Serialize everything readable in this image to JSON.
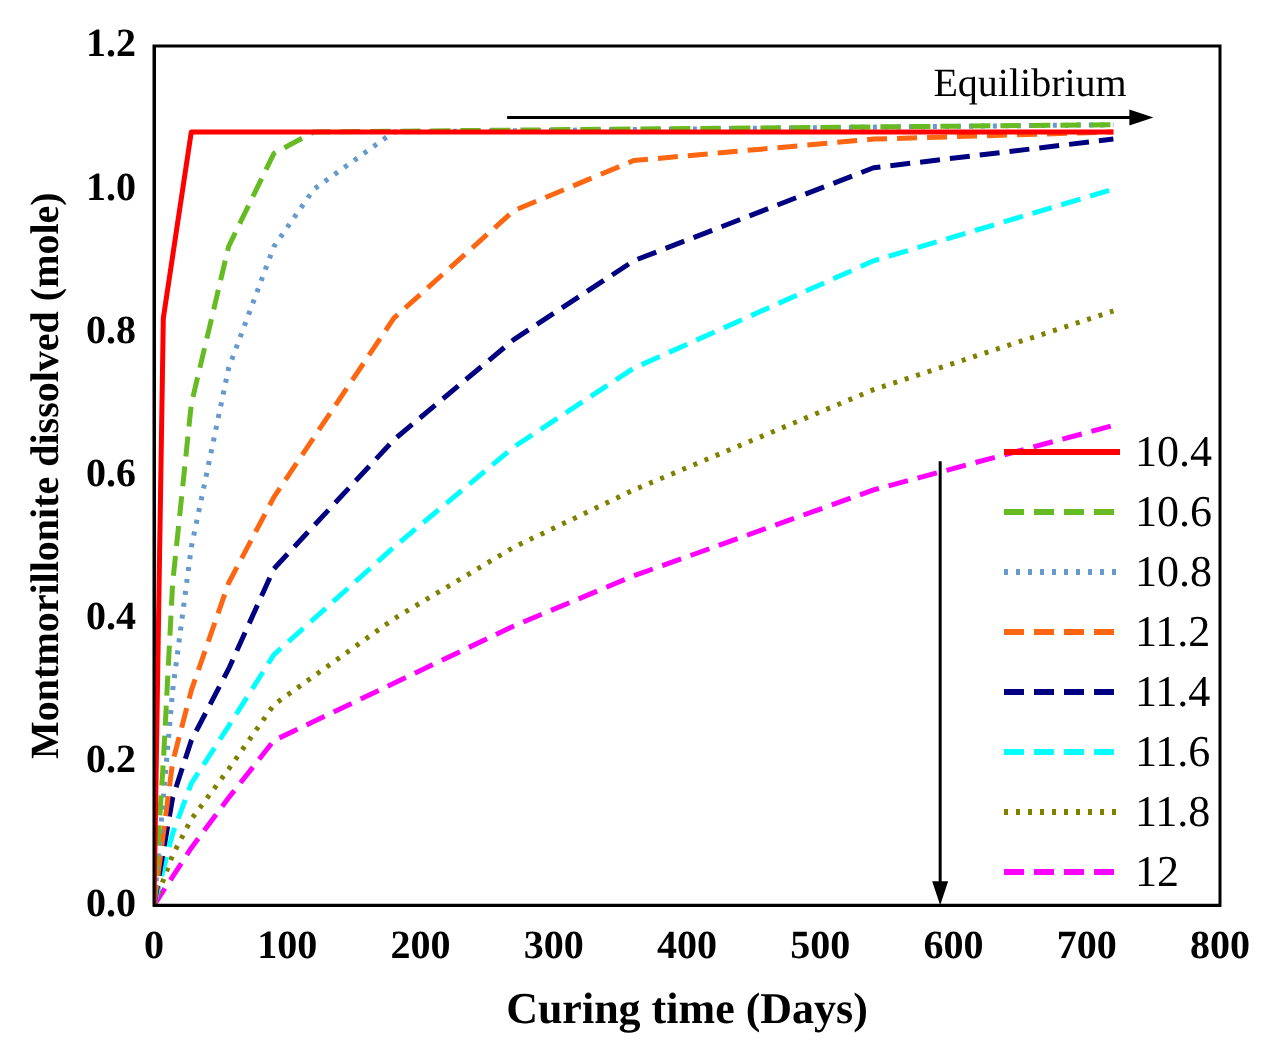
{
  "chart_data": {
    "type": "line",
    "xlabel": "Curing time (Days)",
    "ylabel": "Montmorillonite dissolved (mole)",
    "xlim": [
      0,
      800
    ],
    "xticks": [
      0,
      100,
      200,
      300,
      400,
      500,
      600,
      700,
      800
    ],
    "ylim": [
      0,
      1.2
    ],
    "yticks": [
      {
        "value": 0,
        "label": "0.0"
      },
      0.2,
      0.4,
      0.6,
      0.8,
      {
        "value": 1,
        "label": "1.0"
      },
      1.2
    ],
    "legend": "bottom right",
    "grid": false,
    "marker": "none",
    "annotations": [
      "Equilibrium"
    ],
    "series": [
      {
        "name": "10.4",
        "color": "#ff0000",
        "line_style": "solid",
        "x": [
          0,
          7,
          28,
          720
        ],
        "values": [
          0,
          0.82,
          1.08,
          1.08
        ]
      },
      {
        "name": "10.6",
        "color": "#66bb22",
        "line_style": "dashed",
        "x": [
          0,
          7,
          14,
          28,
          56,
          90,
          120,
          720
        ],
        "values": [
          0,
          0.2,
          0.45,
          0.7,
          0.92,
          1.05,
          1.08,
          1.09
        ]
      },
      {
        "name": "10.8",
        "color": "#6699cc",
        "line_style": "dotted",
        "x": [
          0,
          14,
          28,
          56,
          90,
          120,
          180,
          720
        ],
        "values": [
          0,
          0.3,
          0.5,
          0.75,
          0.92,
          1.0,
          1.08,
          1.09
        ]
      },
      {
        "name": "11.2",
        "color": "#ff6611",
        "line_style": "dashed",
        "x": [
          0,
          14,
          28,
          56,
          90,
          180,
          270,
          360,
          540,
          720
        ],
        "values": [
          0,
          0.2,
          0.3,
          0.45,
          0.57,
          0.82,
          0.97,
          1.04,
          1.07,
          1.08
        ]
      },
      {
        "name": "11.4",
        "color": "#000080",
        "line_style": "dashed",
        "x": [
          0,
          14,
          28,
          56,
          90,
          180,
          270,
          360,
          540,
          720
        ],
        "values": [
          0,
          0.15,
          0.23,
          0.33,
          0.47,
          0.65,
          0.79,
          0.9,
          1.03,
          1.07
        ]
      },
      {
        "name": "11.6",
        "color": "#00ffff",
        "line_style": "dashed",
        "x": [
          0,
          14,
          28,
          56,
          90,
          180,
          270,
          360,
          540,
          720
        ],
        "values": [
          0,
          0.1,
          0.17,
          0.25,
          0.35,
          0.5,
          0.64,
          0.75,
          0.9,
          1.0
        ]
      },
      {
        "name": "11.8",
        "color": "#808000",
        "line_style": "dotted",
        "x": [
          0,
          14,
          28,
          56,
          90,
          180,
          270,
          360,
          540,
          720
        ],
        "values": [
          0,
          0.07,
          0.12,
          0.19,
          0.28,
          0.4,
          0.5,
          0.58,
          0.72,
          0.83
        ]
      },
      {
        "name": "12",
        "color": "#ff00ff",
        "line_style": "dashed",
        "x": [
          0,
          14,
          28,
          56,
          90,
          180,
          270,
          360,
          540,
          720
        ],
        "values": [
          0,
          0.04,
          0.08,
          0.15,
          0.23,
          0.31,
          0.39,
          0.46,
          0.58,
          0.67
        ]
      }
    ]
  }
}
